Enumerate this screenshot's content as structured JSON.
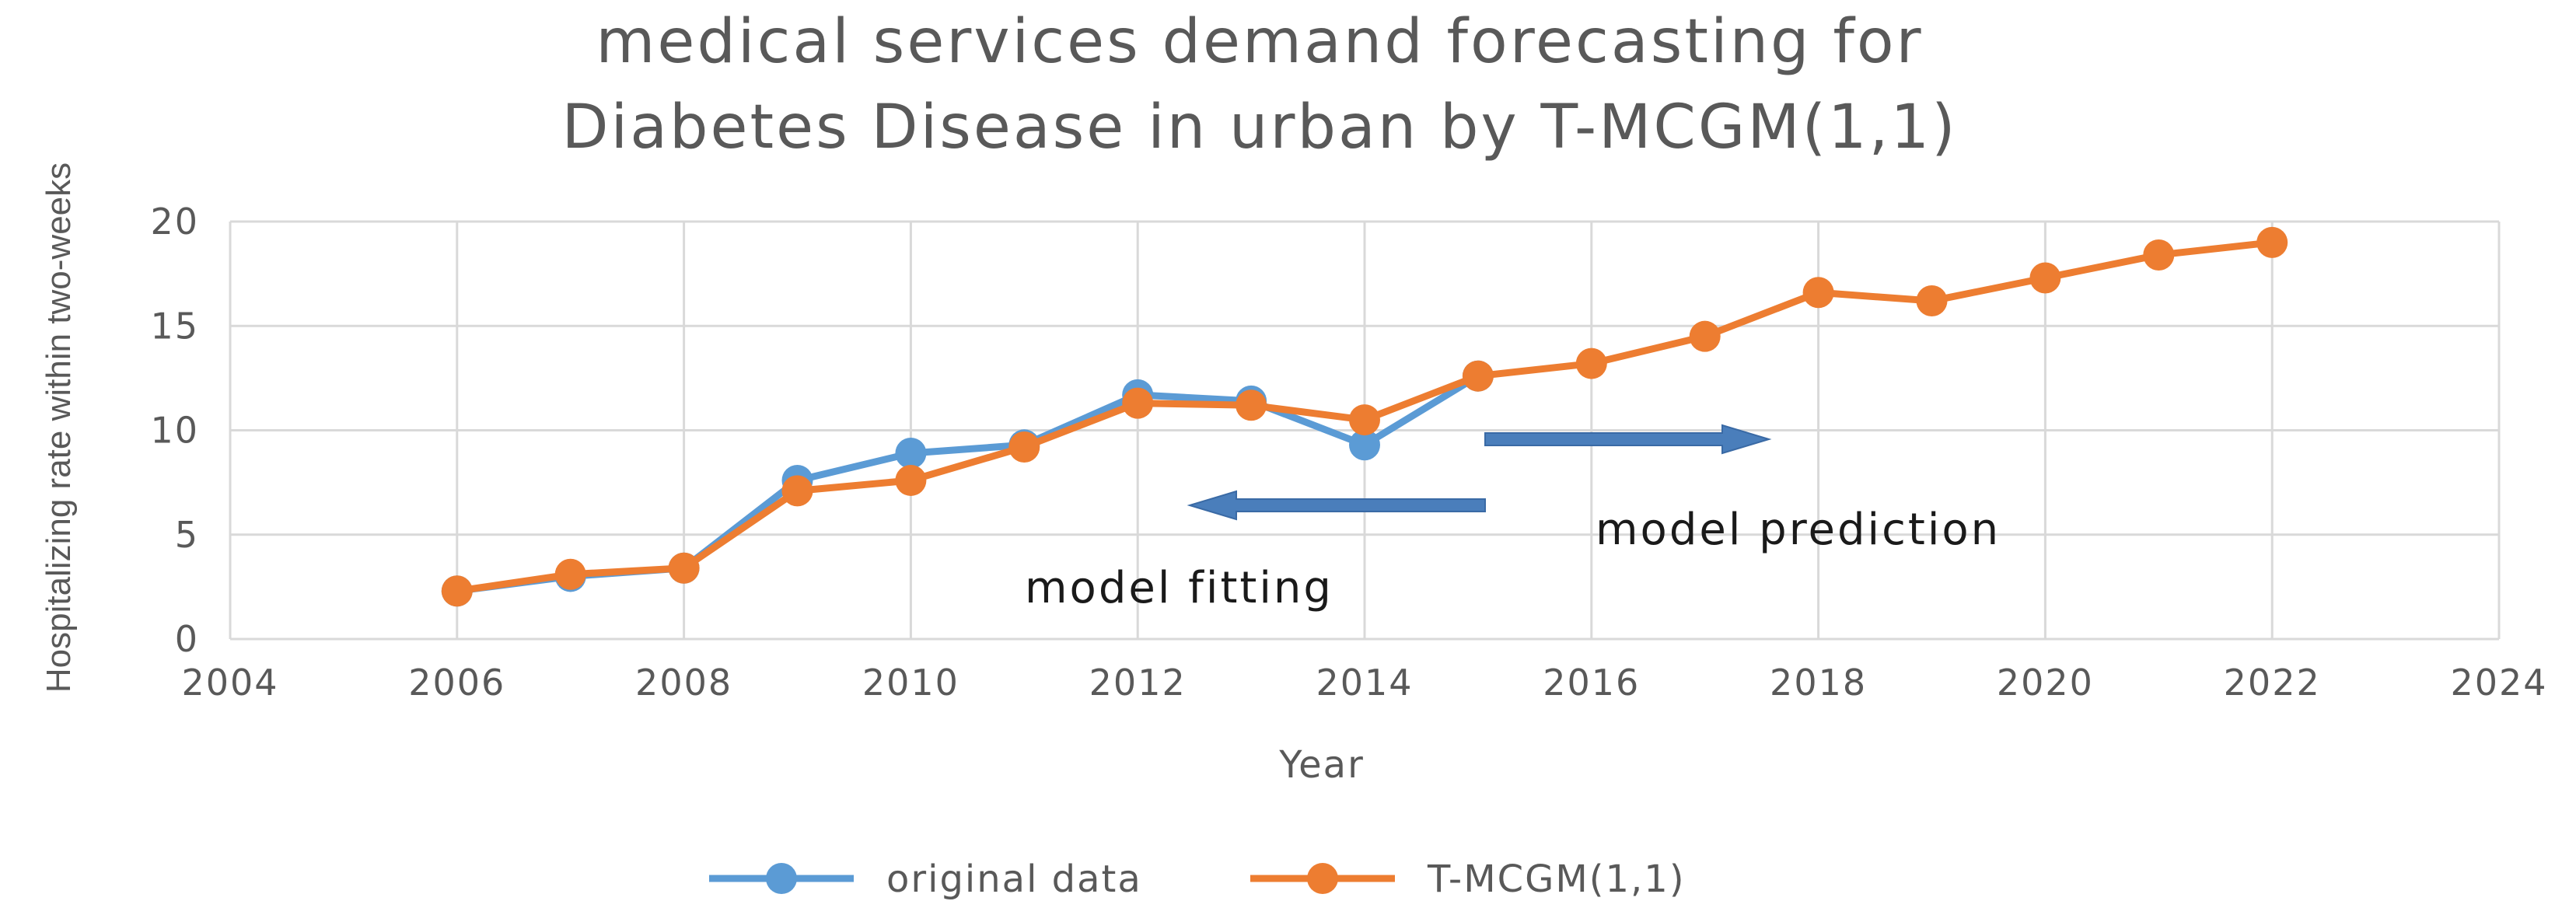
{
  "chart_data": {
    "type": "line",
    "title_lines": [
      "medical services demand forecasting for",
      "Diabetes Disease in urban by T-MCGM(1,1)"
    ],
    "xlabel": "Year",
    "ylabel": "Hospitalizing rate within two-weeks",
    "xlim": [
      2004,
      2024
    ],
    "ylim": [
      0,
      20
    ],
    "x_ticks": [
      2004,
      2006,
      2008,
      2010,
      2012,
      2014,
      2016,
      2018,
      2020,
      2022,
      2024
    ],
    "x_tick_labels": [
      "2004",
      "2006",
      "2008",
      "2010",
      "2012",
      "2014",
      "2016",
      "2018",
      "2020",
      "2022",
      "2024"
    ],
    "y_ticks": [
      0,
      5,
      10,
      15,
      20
    ],
    "y_tick_labels": [
      "0",
      "5",
      "10",
      "15",
      "20"
    ],
    "grid": true,
    "legend_position": "bottom",
    "series": [
      {
        "name": "original data",
        "color": "#5b9bd5",
        "x": [
          2006,
          2007,
          2008,
          2009,
          2010,
          2011,
          2012,
          2013,
          2014,
          2015
        ],
        "values": [
          2.3,
          3.0,
          3.4,
          7.6,
          8.9,
          9.3,
          11.7,
          11.4,
          9.3,
          12.6
        ]
      },
      {
        "name": "T-MCGM(1,1)",
        "color": "#ed7d31",
        "x": [
          2006,
          2007,
          2008,
          2009,
          2010,
          2011,
          2012,
          2013,
          2014,
          2015,
          2016,
          2017,
          2018,
          2019,
          2020,
          2021,
          2022
        ],
        "values": [
          2.3,
          3.1,
          3.4,
          7.1,
          7.6,
          9.2,
          11.3,
          11.2,
          10.5,
          12.6,
          13.2,
          14.5,
          16.6,
          16.2,
          17.3,
          18.4,
          19.0
        ]
      }
    ],
    "annotations": [
      {
        "text": "model fitting",
        "arrow_color": "#4a7ebb",
        "direction": "left"
      },
      {
        "text": "model prediction",
        "arrow_color": "#4a7ebb",
        "direction": "right"
      }
    ]
  }
}
